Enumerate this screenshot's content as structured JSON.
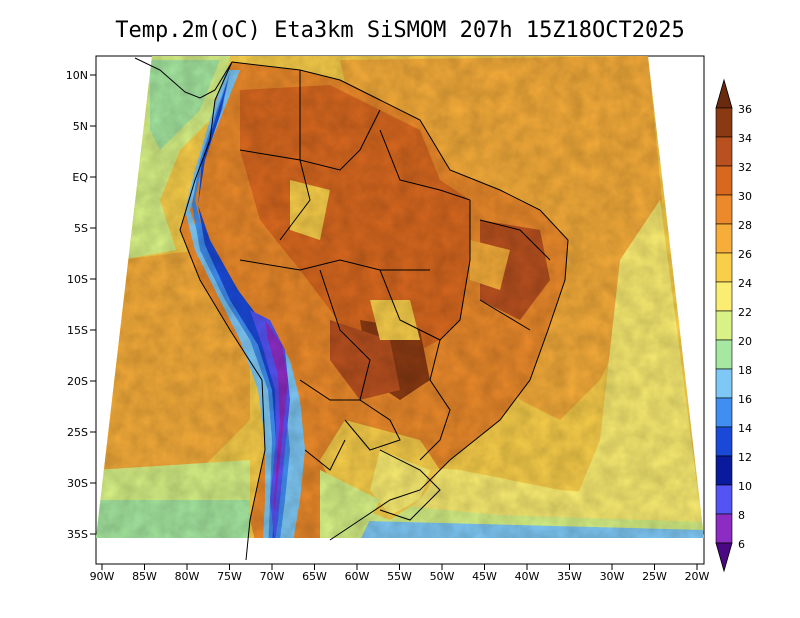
{
  "title": "Temp.2m(oC) Eta3km SiSMOM 207h 15Z18OCT2025",
  "axes": {
    "lat_ticks": [
      "10N",
      "5N",
      "EQ",
      "5S",
      "10S",
      "15S",
      "20S",
      "25S",
      "30S",
      "35S"
    ],
    "lon_ticks": [
      "90W",
      "85W",
      "80W",
      "75W",
      "70W",
      "65W",
      "60W",
      "55W",
      "50W",
      "45W",
      "40W",
      "35W",
      "30W",
      "25W",
      "20W"
    ]
  },
  "colorbar": {
    "labels": [
      "36",
      "34",
      "32",
      "30",
      "28",
      "26",
      "24",
      "22",
      "20",
      "18",
      "16",
      "14",
      "12",
      "10",
      "8",
      "6"
    ],
    "colors": [
      "#8a3a12",
      "#b8501f",
      "#d9681f",
      "#ec8a2b",
      "#f6ad3a",
      "#f9cf4a",
      "#fbed72",
      "#d8f286",
      "#a6e8a1",
      "#7ec8f5",
      "#3f8ef0",
      "#1a49d8",
      "#0a1a9c",
      "#5454f4",
      "#8c2cc2",
      "#5a0b91"
    ],
    "top_arrow_color": "#6a2a0e",
    "bottom_arrow_color": "#4a0882"
  },
  "chart_data": {
    "type": "heatmap",
    "title": "Temp.2m(oC) Eta3km SiSMOM 207h 15Z18OCT2025",
    "variable": "2 m air temperature",
    "units": "°C",
    "model": "Eta3km SiSMOM",
    "forecast_hour": "207h",
    "valid_time": "15Z18OCT2025",
    "lon_range": [
      -90,
      -20
    ],
    "lat_range": [
      -38,
      11
    ],
    "colorbar_levels": [
      6,
      8,
      10,
      12,
      14,
      16,
      18,
      20,
      22,
      24,
      26,
      28,
      30,
      32,
      34,
      36
    ]
  }
}
